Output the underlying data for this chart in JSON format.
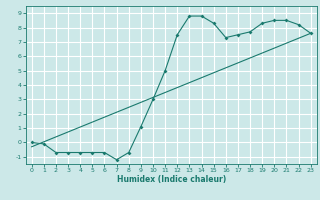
{
  "title": "",
  "xlabel": "Humidex (Indice chaleur)",
  "bg_color": "#cce8e8",
  "grid_color": "#ffffff",
  "line_color": "#1a7a6e",
  "xlim": [
    -0.5,
    23.5
  ],
  "ylim": [
    -1.5,
    9.5
  ],
  "xticks": [
    0,
    1,
    2,
    3,
    4,
    5,
    6,
    7,
    8,
    9,
    10,
    11,
    12,
    13,
    14,
    15,
    16,
    17,
    18,
    19,
    20,
    21,
    22,
    23
  ],
  "yticks": [
    -1,
    0,
    1,
    2,
    3,
    4,
    5,
    6,
    7,
    8,
    9
  ],
  "line1_x": [
    0,
    1,
    2,
    3,
    4,
    5,
    6,
    7,
    8,
    9,
    10,
    11,
    12,
    13,
    14,
    15,
    16,
    17,
    18,
    19,
    20,
    21,
    22,
    23
  ],
  "line1_y": [
    0.0,
    -0.1,
    -0.7,
    -0.7,
    -0.7,
    -0.7,
    -0.7,
    -1.2,
    -0.7,
    1.1,
    3.0,
    5.0,
    7.5,
    8.8,
    8.8,
    8.3,
    7.3,
    7.5,
    7.7,
    8.3,
    8.5,
    8.5,
    8.2,
    7.6
  ],
  "line2_x": [
    0,
    23
  ],
  "line2_y": [
    -0.3,
    7.6
  ]
}
